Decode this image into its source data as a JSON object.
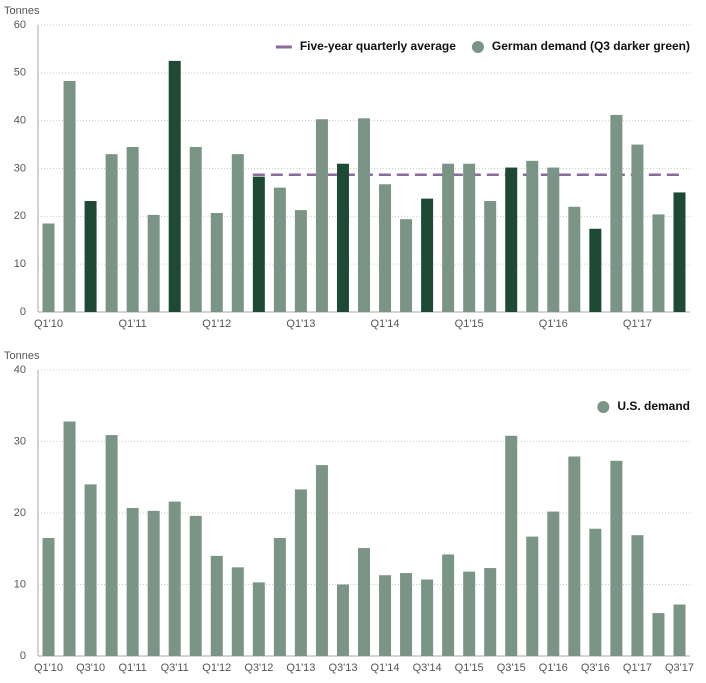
{
  "chart_data": [
    {
      "type": "bar",
      "y_label": "Tonnes",
      "categories": [
        "Q1'10",
        null,
        null,
        null,
        "Q1'11",
        null,
        null,
        null,
        "Q1'12",
        null,
        null,
        null,
        "Q1'13",
        null,
        null,
        null,
        "Q1'14",
        null,
        null,
        null,
        "Q1'15",
        null,
        null,
        null,
        "Q1'16",
        null,
        null,
        null,
        "Q1'17",
        null,
        null
      ],
      "series": [
        {
          "name": "Five-year quarterly average",
          "type": "line",
          "color": "#8b6a9c",
          "dashed": true,
          "values": [
            null,
            null,
            null,
            null,
            null,
            null,
            null,
            null,
            null,
            null,
            28.7,
            28.7,
            28.7,
            28.7,
            28.7,
            28.7,
            28.7,
            28.7,
            28.7,
            28.7,
            28.7,
            28.7,
            28.7,
            28.7,
            28.7,
            28.7,
            28.7,
            28.7,
            28.7,
            28.7,
            28.7
          ]
        },
        {
          "name": "German demand (Q3 darker green)",
          "type": "bar",
          "color": "#7a9485",
          "colors": [
            "#7a9485",
            "#7a9485",
            "#1e4a35",
            "#7a9485",
            "#7a9485",
            "#7a9485",
            "#1e4a35",
            "#7a9485",
            "#7a9485",
            "#7a9485",
            "#1e4a35",
            "#7a9485",
            "#7a9485",
            "#7a9485",
            "#1e4a35",
            "#7a9485",
            "#7a9485",
            "#7a9485",
            "#1e4a35",
            "#7a9485",
            "#7a9485",
            "#7a9485",
            "#1e4a35",
            "#7a9485",
            "#7a9485",
            "#7a9485",
            "#1e4a35",
            "#7a9485",
            "#7a9485",
            "#7a9485",
            "#1e4a35"
          ],
          "values": [
            18.5,
            48.3,
            23.2,
            33,
            34.5,
            20.3,
            52.5,
            34.5,
            20.7,
            33,
            28.3,
            26,
            21.3,
            40.3,
            31,
            40.5,
            26.7,
            19.4,
            23.7,
            31,
            31,
            23.2,
            30.2,
            31.6,
            30.2,
            22,
            17.4,
            41.2,
            35,
            20.4,
            25
          ]
        }
      ],
      "ylim": [
        0,
        60
      ],
      "yticks": [
        0,
        10,
        20,
        30,
        40,
        50,
        60
      ],
      "grid": true
    },
    {
      "type": "bar",
      "y_label": "Tonnes",
      "categories": [
        "Q1'10",
        null,
        "Q3'10",
        null,
        "Q1'11",
        null,
        "Q3'11",
        null,
        "Q1'12",
        null,
        "Q3'12",
        null,
        "Q1'13",
        null,
        "Q3'13",
        null,
        "Q1'14",
        null,
        "Q3'14",
        null,
        "Q1'15",
        null,
        "Q3'15",
        null,
        "Q1'16",
        null,
        "Q3'16",
        null,
        "Q1'17",
        null,
        "Q3'17"
      ],
      "series": [
        {
          "name": "U.S. demand",
          "type": "bar",
          "color": "#7a9485",
          "values": [
            16.5,
            32.8,
            24,
            30.9,
            20.7,
            20.3,
            21.6,
            19.6,
            14,
            12.4,
            10.3,
            16.5,
            23.3,
            26.7,
            10,
            15.1,
            11.3,
            11.6,
            10.7,
            14.2,
            11.8,
            12.3,
            30.8,
            16.7,
            20.2,
            27.9,
            17.8,
            27.3,
            16.9,
            6,
            7.2
          ]
        }
      ],
      "ylim": [
        0,
        40
      ],
      "yticks": [
        0,
        10,
        20,
        30,
        40
      ],
      "grid": true
    }
  ]
}
